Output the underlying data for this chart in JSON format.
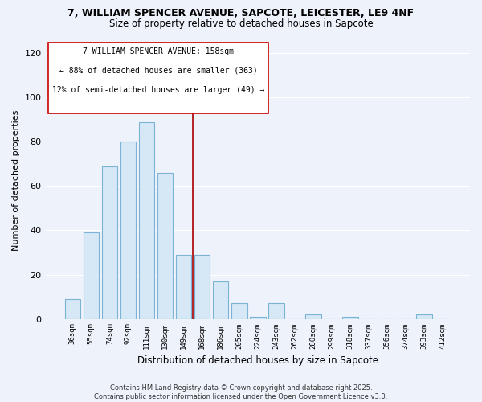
{
  "title": "7, WILLIAM SPENCER AVENUE, SAPCOTE, LEICESTER, LE9 4NF",
  "subtitle": "Size of property relative to detached houses in Sapcote",
  "xlabel": "Distribution of detached houses by size in Sapcote",
  "ylabel": "Number of detached properties",
  "bar_color": "#d6e8f5",
  "bar_edge_color": "#7ab3d4",
  "background_color": "#eef2fb",
  "grid_color": "#ffffff",
  "categories": [
    "36sqm",
    "55sqm",
    "74sqm",
    "92sqm",
    "111sqm",
    "130sqm",
    "149sqm",
    "168sqm",
    "186sqm",
    "205sqm",
    "224sqm",
    "243sqm",
    "262sqm",
    "280sqm",
    "299sqm",
    "318sqm",
    "337sqm",
    "356sqm",
    "374sqm",
    "393sqm",
    "412sqm"
  ],
  "values": [
    9,
    39,
    69,
    80,
    89,
    66,
    29,
    29,
    17,
    7,
    1,
    7,
    0,
    2,
    0,
    1,
    0,
    0,
    0,
    2,
    0
  ],
  "ylim": [
    0,
    125
  ],
  "yticks": [
    0,
    20,
    40,
    60,
    80,
    100,
    120
  ],
  "vline_color": "#aa0000",
  "annotation_line1": "7 WILLIAM SPENCER AVENUE: 158sqm",
  "annotation_line2": "← 88% of detached houses are smaller (363)",
  "annotation_line3": "12% of semi-detached houses are larger (49) →",
  "footer_line1": "Contains HM Land Registry data © Crown copyright and database right 2025.",
  "footer_line2": "Contains public sector information licensed under the Open Government Licence v3.0."
}
